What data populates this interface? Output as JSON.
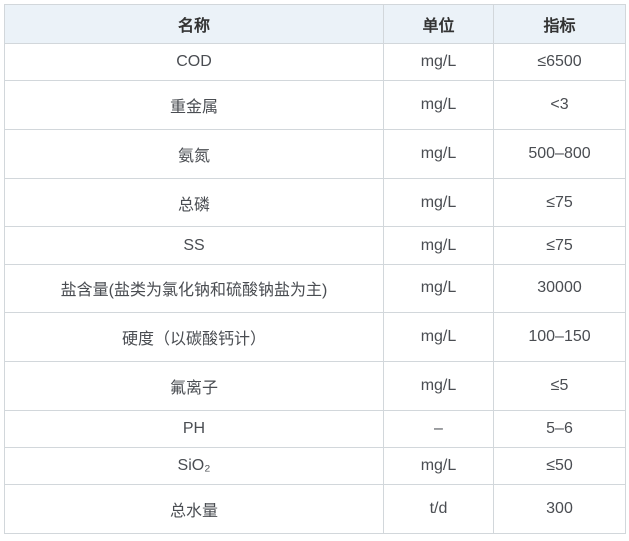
{
  "chart_data": {
    "type": "table",
    "title": "",
    "columns": [
      "名称",
      "单位",
      "指标"
    ],
    "rows": [
      {
        "name": "COD",
        "unit": "mg/L",
        "value": "≤6500"
      },
      {
        "name": "重金属",
        "unit": "mg/L",
        "value": "<3"
      },
      {
        "name": "氨氮",
        "unit": "mg/L",
        "value": "500–800"
      },
      {
        "name": "总磷",
        "unit": "mg/L",
        "value": "≤75"
      },
      {
        "name": "SS",
        "unit": "mg/L",
        "value": "≤75"
      },
      {
        "name": "盐含量(盐类为氯化钠和硫酸钠盐为主)",
        "unit": "mg/L",
        "value": "30000"
      },
      {
        "name": "硬度（以碳酸钙计）",
        "unit": "mg/L",
        "value": "100–150"
      },
      {
        "name": "氟离子",
        "unit": "mg/L",
        "value": "≤5"
      },
      {
        "name": "PH",
        "unit": "–",
        "value": "5–6"
      },
      {
        "name": "SiO₂",
        "unit": "mg/L",
        "value": "≤50"
      },
      {
        "name": "总水量",
        "unit": "t/d",
        "value": "300"
      }
    ],
    "layout": {
      "grid": true,
      "header_position": "top",
      "text_align": "center"
    },
    "colors": {
      "header_bg": "#ebf2f8",
      "header_text": "#333333",
      "body_text": "#4a4d52",
      "border": "#d2d7db",
      "row_bg": "#ffffff"
    }
  }
}
